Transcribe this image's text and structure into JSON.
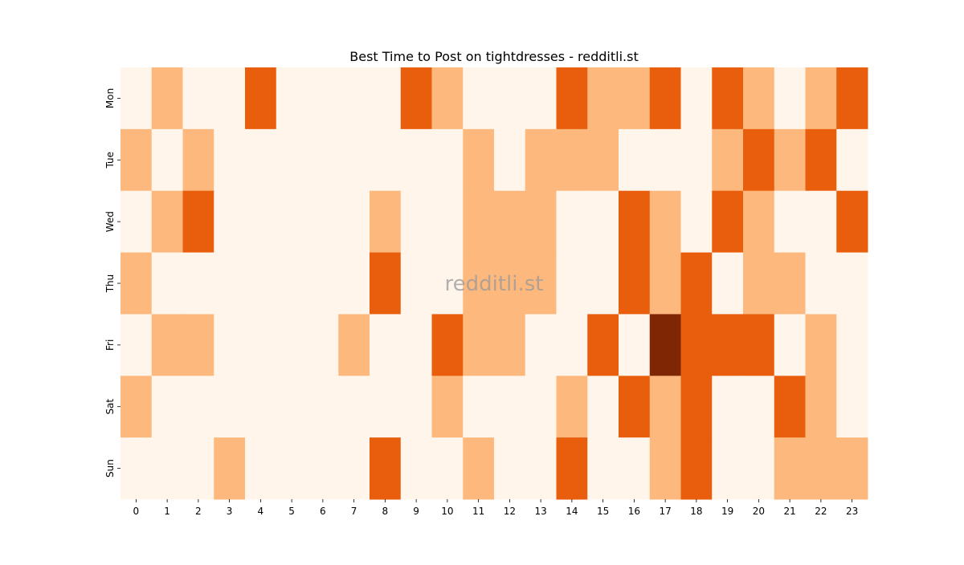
{
  "chart_data": {
    "type": "heatmap",
    "title": "Best Time to Post on tightdresses - redditli.st",
    "xlabel": "",
    "ylabel": "",
    "x_categories": [
      "0",
      "1",
      "2",
      "3",
      "4",
      "5",
      "6",
      "7",
      "8",
      "9",
      "10",
      "11",
      "12",
      "13",
      "14",
      "15",
      "16",
      "17",
      "18",
      "19",
      "20",
      "21",
      "22",
      "23"
    ],
    "y_categories": [
      "Mon",
      "Tue",
      "Wed",
      "Thu",
      "Fri",
      "Sat",
      "Sun"
    ],
    "values": [
      [
        0,
        1,
        0,
        0,
        2,
        0,
        0,
        0,
        0,
        2,
        1,
        0,
        0,
        0,
        2,
        1,
        1,
        2,
        0,
        2,
        1,
        0,
        1,
        2
      ],
      [
        1,
        0,
        1,
        0,
        0,
        0,
        0,
        0,
        0,
        0,
        0,
        1,
        0,
        1,
        1,
        1,
        0,
        0,
        0,
        1,
        2,
        1,
        2,
        0
      ],
      [
        0,
        1,
        2,
        0,
        0,
        0,
        0,
        0,
        1,
        0,
        0,
        1,
        1,
        1,
        0,
        0,
        2,
        1,
        0,
        2,
        1,
        0,
        0,
        2
      ],
      [
        1,
        0,
        0,
        0,
        0,
        0,
        0,
        0,
        2,
        0,
        0,
        1,
        1,
        1,
        0,
        0,
        2,
        1,
        2,
        0,
        1,
        1,
        0,
        0
      ],
      [
        0,
        1,
        1,
        0,
        0,
        0,
        0,
        1,
        0,
        0,
        2,
        1,
        1,
        0,
        0,
        2,
        0,
        3,
        2,
        2,
        2,
        0,
        1,
        0
      ],
      [
        1,
        0,
        0,
        0,
        0,
        0,
        0,
        0,
        0,
        0,
        1,
        0,
        0,
        0,
        1,
        0,
        2,
        1,
        2,
        0,
        0,
        2,
        1,
        0
      ],
      [
        0,
        0,
        0,
        1,
        0,
        0,
        0,
        0,
        2,
        0,
        0,
        1,
        0,
        0,
        2,
        0,
        0,
        1,
        2,
        0,
        0,
        1,
        1,
        1
      ]
    ],
    "value_range": [
      0,
      3
    ],
    "colormap": [
      "#fff5eb",
      "#fdb97d",
      "#e95e0d",
      "#7f2704"
    ],
    "colorbar": false,
    "grid": false,
    "watermark": "redditli.st"
  }
}
